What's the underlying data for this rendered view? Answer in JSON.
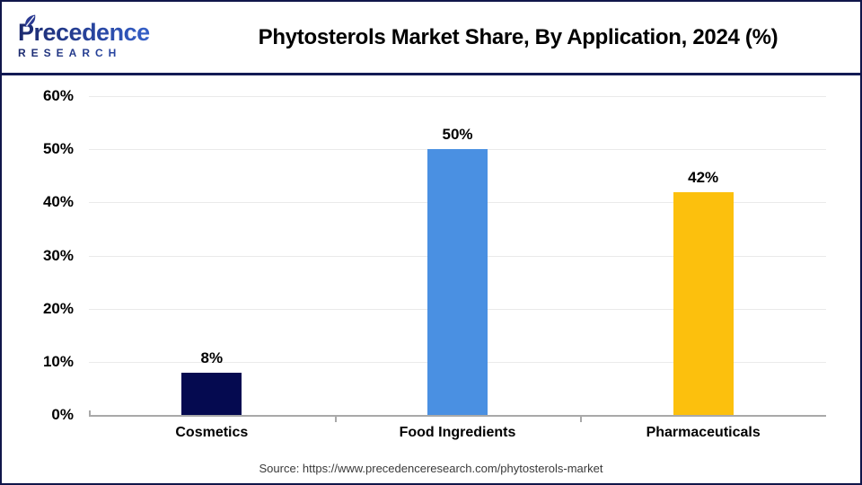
{
  "header": {
    "logo": {
      "name": "Precedence",
      "subname": "RESEARCH"
    },
    "title": "Phytosterols Market Share, By Application, 2024 (%)"
  },
  "chart_data": {
    "type": "bar",
    "title": "Phytosterols Market Share, By Application, 2024 (%)",
    "categories": [
      "Cosmetics",
      "Food Ingredients",
      "Pharmaceuticals"
    ],
    "values": [
      8,
      50,
      42
    ],
    "value_labels": [
      "8%",
      "50%",
      "42%"
    ],
    "bar_colors": [
      "#050a50",
      "#4a90e2",
      "#fcc00d"
    ],
    "xlabel": "",
    "ylabel": "",
    "ylim": [
      0,
      60
    ],
    "ytick_step": 10,
    "ytick_labels": [
      "0%",
      "10%",
      "20%",
      "30%",
      "40%",
      "50%",
      "60%"
    ],
    "grid": true,
    "legend": "none"
  },
  "source": {
    "text": "Source: https://www.precedenceresearch.com/phytosterols-market"
  },
  "colors": {
    "header_rule": "#131b55",
    "grid": "#eaeaea",
    "axis": "#a9a9a9",
    "title_text": "#000000",
    "source_text": "#3a3a3a"
  }
}
